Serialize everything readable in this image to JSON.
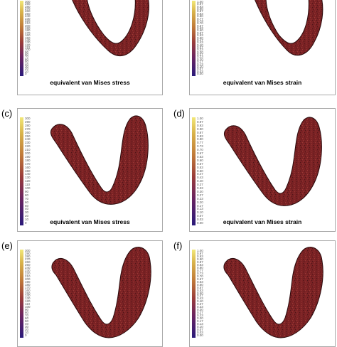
{
  "panels": [
    {
      "label": "",
      "caption": "equivalent van Mises stress",
      "scale": "stress"
    },
    {
      "label": "",
      "caption": "equivalent van Mises strain",
      "scale": "strain"
    },
    {
      "label": "(c)",
      "caption": "equivalent van Mises stress",
      "scale": "stress"
    },
    {
      "label": "(d)",
      "caption": "equivalent van Mises strain",
      "scale": "strain"
    },
    {
      "label": "(e)",
      "caption": "",
      "scale": "stress"
    },
    {
      "label": "(f)",
      "caption": "",
      "scale": "strain"
    }
  ],
  "stress_ticks": [
    "300",
    "290",
    "280",
    "270",
    "260",
    "250",
    "240",
    "230",
    "220",
    "210",
    "200",
    "190",
    "180",
    "170",
    "160",
    "150",
    "140",
    "130",
    "120",
    "110",
    "100",
    "90",
    "80",
    "70",
    "60",
    "50",
    "40",
    "30",
    "20",
    "10",
    "0"
  ],
  "strain_ticks": [
    "1.00",
    "0.97",
    "0.93",
    "0.90",
    "0.87",
    "0.83",
    "0.80",
    "0.77",
    "0.73",
    "0.70",
    "0.67",
    "0.63",
    "0.60",
    "0.57",
    "0.53",
    "0.50",
    "0.47",
    "0.43",
    "0.40",
    "0.37",
    "0.33",
    "0.30",
    "0.27",
    "0.23",
    "0.20",
    "0.17",
    "0.13",
    "0.10",
    "0.07",
    "0.03",
    "0.00"
  ],
  "colors": {
    "tissue": "#7b2224",
    "tissue_dark": "#4f1518",
    "tissue_light": "#9a3a36",
    "outline": "#2a0a0c"
  }
}
